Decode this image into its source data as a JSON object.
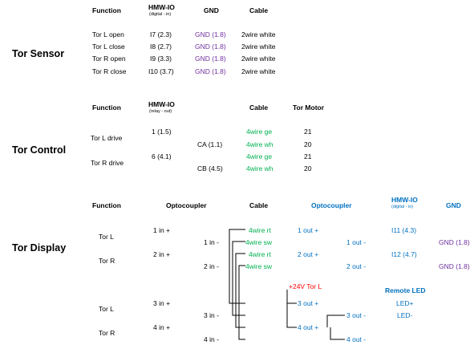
{
  "sensor": {
    "title": "Tor Sensor",
    "headers": {
      "function": "Function",
      "hmw": "HMW-IO",
      "hmw_sub": "(digital - in)",
      "gnd": "GND",
      "cable": "Cable"
    },
    "rows": [
      {
        "function": "Tor L open",
        "io": "I7 (2.3)",
        "gnd": "GND (1.8)",
        "cable": "2wire white"
      },
      {
        "function": "Tor L close",
        "io": "I8 (2.7)",
        "gnd": "GND (1.8)",
        "cable": "2wire white"
      },
      {
        "function": "Tor R open",
        "io": "I9 (3.3)",
        "gnd": "GND (1.8)",
        "cable": "2wire white"
      },
      {
        "function": "Tor R close",
        "io": "I10 (3.7)",
        "gnd": "GND (1.8)",
        "cable": "2wire white"
      }
    ]
  },
  "control": {
    "title": "Tor Control",
    "headers": {
      "function": "Function",
      "hmw": "HMW-IO",
      "hmw_sub": "(relay - out)",
      "cable": "Cable",
      "motor": "Tor Motor"
    },
    "functions": [
      "Tor L drive",
      "Tor R drive"
    ],
    "relays": [
      "1 (1.5)",
      "6 (4.1)"
    ],
    "commons": [
      "CA (1.1)",
      "CB (4.5)"
    ],
    "cables": [
      "4wire ge",
      "4wire wh",
      "4wire ge",
      "4wire wh"
    ],
    "motor": [
      "21",
      "20",
      "21",
      "20"
    ]
  },
  "display": {
    "title": "Tor Display",
    "headers": {
      "function": "Function",
      "opto1": "Optocoupler",
      "cable": "Cable",
      "opto2": "Optocoupler",
      "hmw": "HMW-IO",
      "hmw_sub": "(digital - in)",
      "gnd": "GND"
    },
    "functions": [
      "Tor L",
      "Tor R",
      "Tor L",
      "Tor R"
    ],
    "opto_in": [
      "1 in +",
      "1 in -",
      "2 in +",
      "2 in -",
      "3 in +",
      "3 in -",
      "4 in +",
      "4 in -"
    ],
    "cables": [
      "4wire rt",
      "4wire sw",
      "4wire rt",
      "4wire sw"
    ],
    "opto_plus": [
      "1 out +",
      "2 out +"
    ],
    "opto_minus": [
      "1 out -",
      "2 out -"
    ],
    "io": [
      "I11 (4.3)",
      "I12 (4.7)"
    ],
    "gnd": [
      "GND (1.8)",
      "GND (1.8)"
    ],
    "supply": "+24V Tor L",
    "opto_out_lower": [
      "3 out +",
      "3 out -",
      "4 out +",
      "4 out -"
    ],
    "remote_led": {
      "title": "Remote LED",
      "plus": "LED+",
      "minus": "LED-"
    }
  }
}
